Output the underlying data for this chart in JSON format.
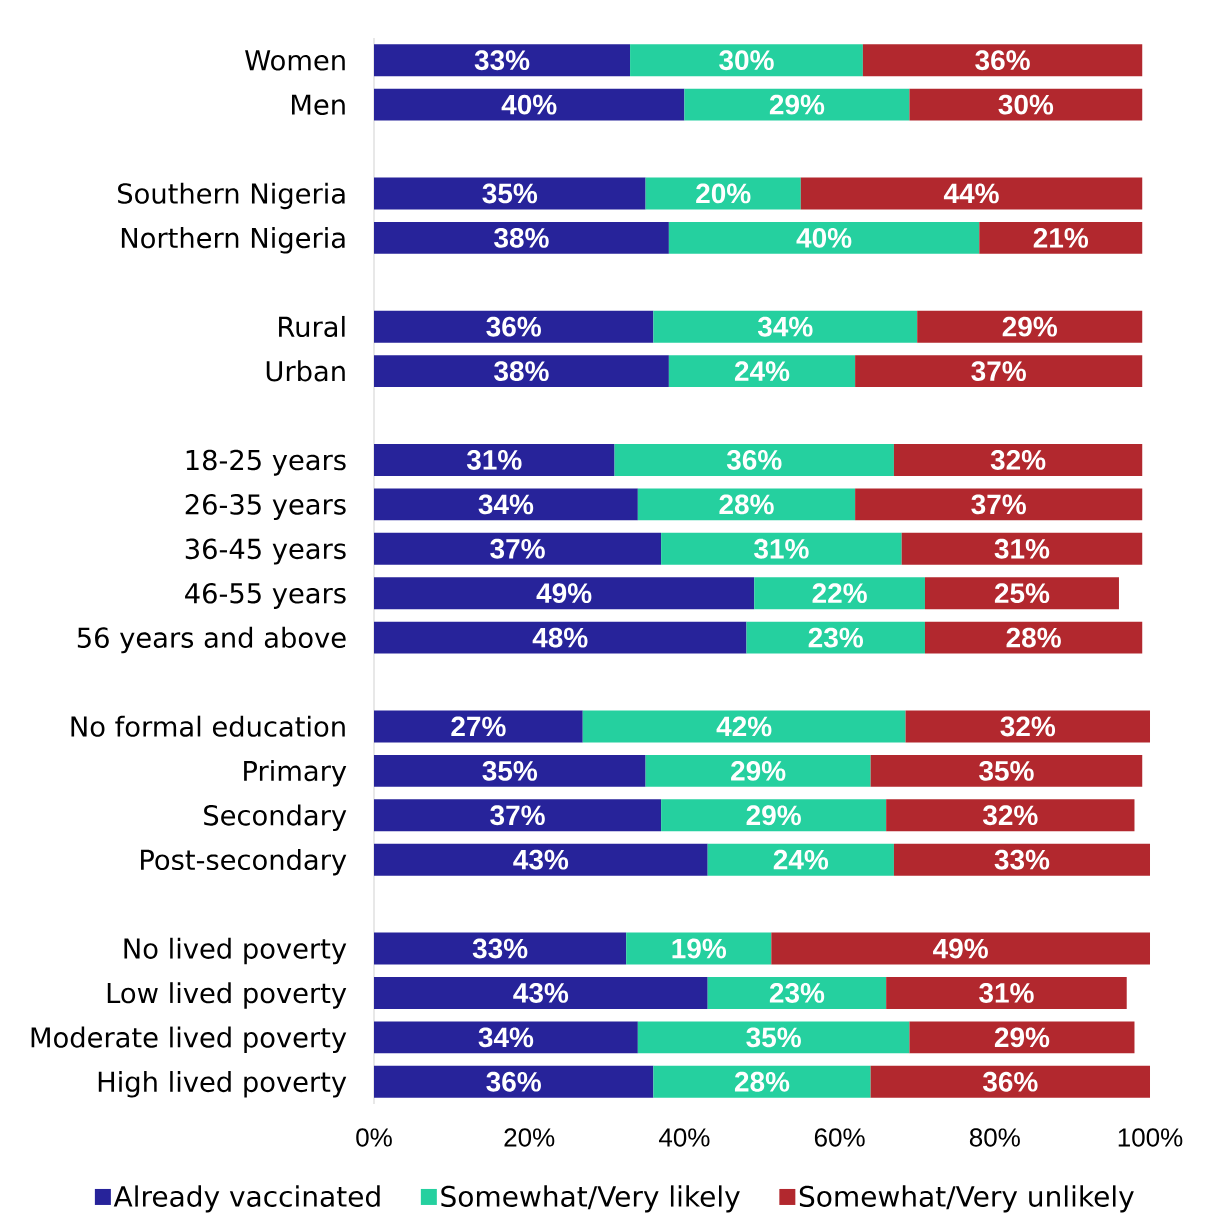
{
  "chart_data": {
    "type": "bar",
    "orientation": "horizontal",
    "stacked": true,
    "categories": [
      "Women",
      "Men",
      null,
      "Southern Nigeria",
      "Northern Nigeria",
      null,
      "Rural",
      "Urban",
      null,
      "18-25 years",
      "26-35 years",
      "36-45 years",
      "46-55 years",
      "56 years and above",
      null,
      "No formal education",
      "Primary",
      "Secondary",
      "Post-secondary",
      null,
      "No lived poverty",
      "Low lived poverty",
      "Moderate lived poverty",
      "High lived poverty"
    ],
    "series": [
      {
        "name": "Already vaccinated",
        "color": "#27239a",
        "values": [
          33,
          40,
          null,
          35,
          38,
          null,
          36,
          38,
          null,
          31,
          34,
          37,
          49,
          48,
          null,
          26.9,
          35,
          37,
          43,
          null,
          32.5,
          43,
          34,
          36
        ],
        "value_labels": [
          "33%",
          "40%",
          null,
          "35%",
          "38%",
          null,
          "36%",
          "38%",
          null,
          "31%",
          "34%",
          "37%",
          "49%",
          "48%",
          null,
          "27%",
          "35%",
          "37%",
          "43%",
          null,
          "33%",
          "43%",
          "34%",
          "36%"
        ]
      },
      {
        "name": "Somewhat/Very likely",
        "color": "#25d09f",
        "values": [
          30,
          29,
          null,
          20,
          40,
          null,
          34,
          24,
          null,
          36,
          28,
          31,
          22,
          23,
          null,
          41.6,
          29,
          29,
          24,
          null,
          18.7,
          23,
          35,
          28
        ],
        "value_labels": [
          "30%",
          "29%",
          null,
          "20%",
          "40%",
          null,
          "34%",
          "24%",
          null,
          "36%",
          "28%",
          "31%",
          "22%",
          "23%",
          null,
          "42%",
          "29%",
          "29%",
          "24%",
          null,
          "19%",
          "23%",
          "35%",
          "28%"
        ]
      },
      {
        "name": "Somewhat/Very unlikely",
        "color": "#b2282e",
        "values": [
          36,
          30,
          null,
          44,
          21,
          null,
          29,
          37,
          null,
          32,
          37,
          31,
          25,
          28,
          null,
          31.5,
          35,
          32,
          33,
          null,
          48.8,
          31,
          29,
          36
        ],
        "value_labels": [
          "36%",
          "30%",
          null,
          "44%",
          "21%",
          null,
          "29%",
          "37%",
          null,
          "32%",
          "37%",
          "31%",
          "25%",
          "28%",
          null,
          "32%",
          "35%",
          "32%",
          "33%",
          null,
          "49%",
          "31%",
          "29%",
          "36%"
        ]
      }
    ],
    "xlim": [
      0,
      100
    ],
    "xticks": [
      {
        "value": 0,
        "label": "0%"
      },
      {
        "value": 20,
        "label": "20%"
      },
      {
        "value": 40,
        "label": "40%"
      },
      {
        "value": 60,
        "label": "60%"
      },
      {
        "value": 80,
        "label": "80%"
      },
      {
        "value": 100,
        "label": "100%"
      }
    ],
    "legend": "bottom"
  }
}
